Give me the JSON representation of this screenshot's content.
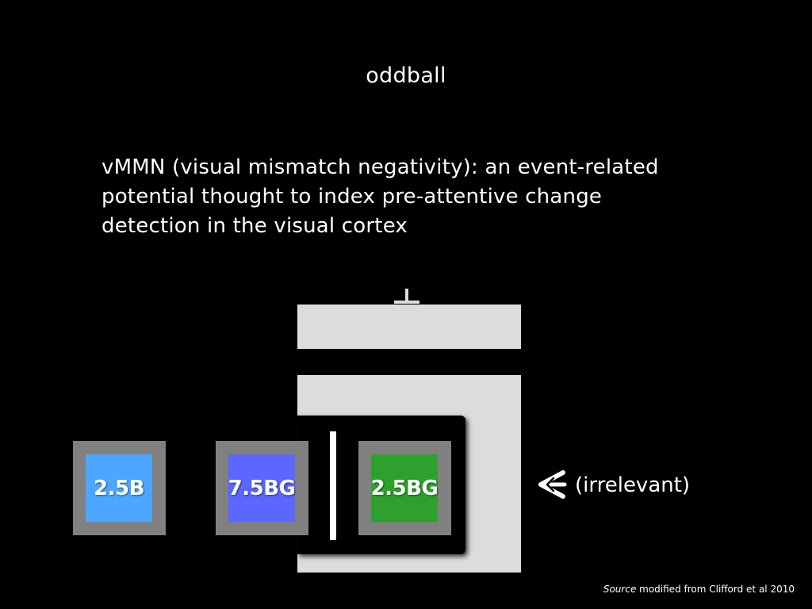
{
  "slide": {
    "title": "oddball",
    "definition_lines": [
      "vMMN (visual mismatch negativity): an event-related",
      "potential thought to index pre-attentive change",
      "detection in the visual cortex"
    ]
  },
  "stimuli": [
    {
      "label": "2.5B",
      "color": "#4da6ff",
      "frame_color": "#808080"
    },
    {
      "label": "7.5BG",
      "color": "#5b67ff",
      "frame_color": "#808080"
    },
    {
      "label": "2.5BG",
      "color": "#2ea02e",
      "frame_color": "#808080"
    }
  ],
  "annotation": {
    "arrow_icon": "arrow-left-icon",
    "text": "(irrelevant)"
  },
  "source": {
    "prefix": "Source",
    "text": " modified from Clifford et al 2010"
  },
  "colors": {
    "background": "#000000",
    "panel": "#dcdcdc",
    "text": "#ffffff"
  }
}
